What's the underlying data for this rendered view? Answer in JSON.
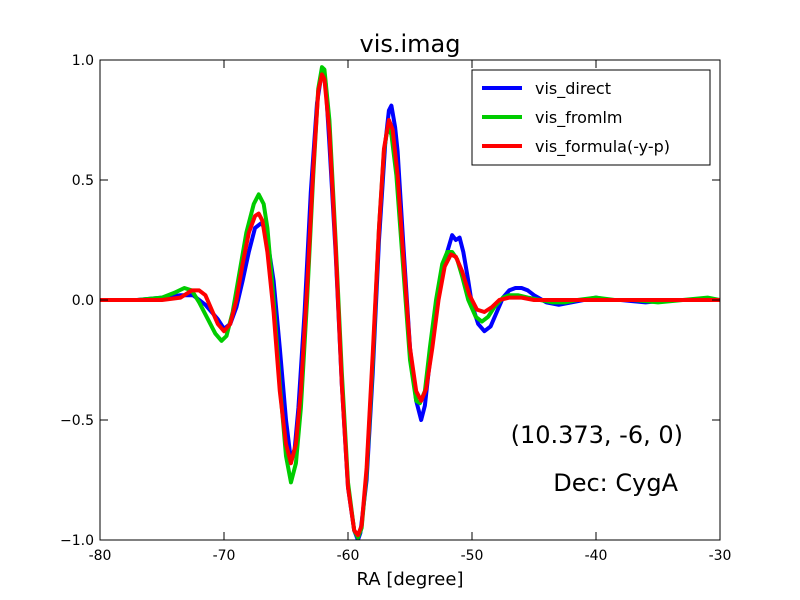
{
  "chart_data": {
    "type": "line",
    "title": "vis.imag",
    "xlabel": "RA [degree]",
    "ylabel": "",
    "xlim": [
      -80,
      -30
    ],
    "ylim": [
      -1.0,
      1.0
    ],
    "xticks": [
      -80,
      -70,
      -60,
      -50,
      -40,
      -30
    ],
    "xtick_labels": [
      "-80",
      "-70",
      "-60",
      "-50",
      "-40",
      "-30"
    ],
    "yticks": [
      -1.0,
      -0.5,
      0.0,
      0.5,
      1.0
    ],
    "ytick_labels": [
      "−1.0",
      "−0.5",
      "0.0",
      "0.5",
      "1.0"
    ],
    "grid": false,
    "legend_position": "top-right",
    "annotations": [
      "(10.373, -6, 0)",
      "Dec: CygA"
    ],
    "series": [
      {
        "name": "vis_direct",
        "color": "#0000ff",
        "points": [
          [
            -80,
            0
          ],
          [
            -77,
            0
          ],
          [
            -75,
            0.01
          ],
          [
            -73.5,
            0.02
          ],
          [
            -72.5,
            0.02
          ],
          [
            -71.5,
            -0.02
          ],
          [
            -70.5,
            -0.08
          ],
          [
            -70,
            -0.12
          ],
          [
            -69.5,
            -0.1
          ],
          [
            -69,
            -0.03
          ],
          [
            -68.5,
            0.08
          ],
          [
            -68,
            0.2
          ],
          [
            -67.5,
            0.3
          ],
          [
            -67,
            0.32
          ],
          [
            -66.7,
            0.3
          ],
          [
            -66.5,
            0.25
          ],
          [
            -66,
            0.08
          ],
          [
            -65.5,
            -0.2
          ],
          [
            -65,
            -0.5
          ],
          [
            -64.6,
            -0.67
          ],
          [
            -64.3,
            -0.62
          ],
          [
            -64,
            -0.45
          ],
          [
            -63.5,
            -0.05
          ],
          [
            -63,
            0.45
          ],
          [
            -62.5,
            0.82
          ],
          [
            -62.2,
            0.92
          ],
          [
            -62,
            0.95
          ],
          [
            -61.8,
            0.9
          ],
          [
            -61.5,
            0.65
          ],
          [
            -61,
            0.2
          ],
          [
            -60.5,
            -0.35
          ],
          [
            -60,
            -0.78
          ],
          [
            -59.5,
            -0.96
          ],
          [
            -59.2,
            -1.0
          ],
          [
            -59,
            -0.97
          ],
          [
            -58.5,
            -0.75
          ],
          [
            -58,
            -0.3
          ],
          [
            -57.5,
            0.25
          ],
          [
            -57,
            0.65
          ],
          [
            -56.7,
            0.79
          ],
          [
            -56.5,
            0.81
          ],
          [
            -56.2,
            0.72
          ],
          [
            -56,
            0.62
          ],
          [
            -55.5,
            0.2
          ],
          [
            -55,
            -0.2
          ],
          [
            -54.5,
            -0.42
          ],
          [
            -54.1,
            -0.5
          ],
          [
            -53.8,
            -0.44
          ],
          [
            -53.5,
            -0.3
          ],
          [
            -53,
            -0.1
          ],
          [
            -52.5,
            0.08
          ],
          [
            -52,
            0.2
          ],
          [
            -51.6,
            0.27
          ],
          [
            -51.3,
            0.25
          ],
          [
            -51,
            0.26
          ],
          [
            -50.7,
            0.2
          ],
          [
            -50.3,
            0.08
          ],
          [
            -50,
            -0.02
          ],
          [
            -49.5,
            -0.1
          ],
          [
            -49,
            -0.13
          ],
          [
            -48.5,
            -0.11
          ],
          [
            -48,
            -0.05
          ],
          [
            -47.5,
            0.01
          ],
          [
            -47,
            0.04
          ],
          [
            -46.5,
            0.05
          ],
          [
            -46,
            0.05
          ],
          [
            -45.5,
            0.04
          ],
          [
            -45,
            0.02
          ],
          [
            -44,
            -0.01
          ],
          [
            -43,
            -0.02
          ],
          [
            -42,
            -0.01
          ],
          [
            -41,
            0
          ],
          [
            -40,
            0.01
          ],
          [
            -39,
            0
          ],
          [
            -38,
            0
          ],
          [
            -36,
            -0.01
          ],
          [
            -34,
            0
          ],
          [
            -32,
            0
          ],
          [
            -30,
            0
          ]
        ]
      },
      {
        "name": "vis_fromlm",
        "color": "#00cc00",
        "points": [
          [
            -80,
            0
          ],
          [
            -77,
            0
          ],
          [
            -75,
            0.01
          ],
          [
            -74,
            0.03
          ],
          [
            -73.2,
            0.05
          ],
          [
            -72.6,
            0.04
          ],
          [
            -72,
            -0.01
          ],
          [
            -71.3,
            -0.08
          ],
          [
            -70.7,
            -0.14
          ],
          [
            -70.2,
            -0.17
          ],
          [
            -69.8,
            -0.15
          ],
          [
            -69.3,
            -0.05
          ],
          [
            -68.8,
            0.1
          ],
          [
            -68.2,
            0.28
          ],
          [
            -67.6,
            0.4
          ],
          [
            -67.2,
            0.44
          ],
          [
            -66.8,
            0.4
          ],
          [
            -66.5,
            0.3
          ],
          [
            -66,
            0.0
          ],
          [
            -65.5,
            -0.35
          ],
          [
            -65,
            -0.65
          ],
          [
            -64.6,
            -0.76
          ],
          [
            -64.2,
            -0.68
          ],
          [
            -63.8,
            -0.45
          ],
          [
            -63.3,
            0.0
          ],
          [
            -62.8,
            0.52
          ],
          [
            -62.4,
            0.88
          ],
          [
            -62.1,
            0.97
          ],
          [
            -61.9,
            0.96
          ],
          [
            -61.5,
            0.75
          ],
          [
            -61,
            0.25
          ],
          [
            -60.5,
            -0.3
          ],
          [
            -60,
            -0.76
          ],
          [
            -59.5,
            -0.96
          ],
          [
            -59.2,
            -0.99
          ],
          [
            -58.9,
            -0.95
          ],
          [
            -58.5,
            -0.72
          ],
          [
            -58,
            -0.25
          ],
          [
            -57.5,
            0.3
          ],
          [
            -57.1,
            0.62
          ],
          [
            -56.8,
            0.72
          ],
          [
            -56.5,
            0.69
          ],
          [
            -56.1,
            0.52
          ],
          [
            -55.5,
            0.1
          ],
          [
            -55,
            -0.25
          ],
          [
            -54.5,
            -0.42
          ],
          [
            -54.2,
            -0.43
          ],
          [
            -53.8,
            -0.38
          ],
          [
            -53.4,
            -0.2
          ],
          [
            -52.9,
            0.0
          ],
          [
            -52.4,
            0.15
          ],
          [
            -52,
            0.2
          ],
          [
            -51.6,
            0.2
          ],
          [
            -51.2,
            0.17
          ],
          [
            -50.8,
            0.1
          ],
          [
            -50.3,
            0.0
          ],
          [
            -49.7,
            -0.07
          ],
          [
            -49.2,
            -0.09
          ],
          [
            -48.7,
            -0.07
          ],
          [
            -48.2,
            -0.03
          ],
          [
            -47.5,
            0.01
          ],
          [
            -47,
            0.02
          ],
          [
            -46.3,
            0.02
          ],
          [
            -45.5,
            0.01
          ],
          [
            -44.5,
            0
          ],
          [
            -43.5,
            -0.01
          ],
          [
            -42.5,
            -0.01
          ],
          [
            -41.5,
            0
          ],
          [
            -40,
            0.01
          ],
          [
            -38.5,
            0
          ],
          [
            -37,
            0
          ],
          [
            -35,
            -0.01
          ],
          [
            -33,
            0
          ],
          [
            -31,
            0.01
          ],
          [
            -30,
            0
          ]
        ]
      },
      {
        "name": "vis_formula(-y-p)",
        "color": "#ff0000",
        "points": [
          [
            -80,
            0
          ],
          [
            -77,
            0
          ],
          [
            -75,
            0
          ],
          [
            -73.5,
            0.01
          ],
          [
            -72.6,
            0.04
          ],
          [
            -72,
            0.04
          ],
          [
            -71.5,
            0.02
          ],
          [
            -71,
            -0.04
          ],
          [
            -70.5,
            -0.1
          ],
          [
            -70,
            -0.13
          ],
          [
            -69.5,
            -0.1
          ],
          [
            -69,
            0.0
          ],
          [
            -68.5,
            0.15
          ],
          [
            -68,
            0.28
          ],
          [
            -67.5,
            0.35
          ],
          [
            -67.2,
            0.36
          ],
          [
            -66.9,
            0.33
          ],
          [
            -66.5,
            0.2
          ],
          [
            -66,
            -0.05
          ],
          [
            -65.5,
            -0.38
          ],
          [
            -65,
            -0.6
          ],
          [
            -64.6,
            -0.68
          ],
          [
            -64.2,
            -0.6
          ],
          [
            -63.8,
            -0.38
          ],
          [
            -63.3,
            0.05
          ],
          [
            -62.8,
            0.55
          ],
          [
            -62.4,
            0.87
          ],
          [
            -62.1,
            0.94
          ],
          [
            -61.9,
            0.92
          ],
          [
            -61.5,
            0.7
          ],
          [
            -61,
            0.22
          ],
          [
            -60.5,
            -0.35
          ],
          [
            -60,
            -0.78
          ],
          [
            -59.5,
            -0.96
          ],
          [
            -59.2,
            -0.98
          ],
          [
            -58.9,
            -0.94
          ],
          [
            -58.5,
            -0.7
          ],
          [
            -58,
            -0.22
          ],
          [
            -57.5,
            0.3
          ],
          [
            -57.1,
            0.63
          ],
          [
            -56.7,
            0.75
          ],
          [
            -56.4,
            0.71
          ],
          [
            -56,
            0.52
          ],
          [
            -55.5,
            0.15
          ],
          [
            -55,
            -0.2
          ],
          [
            -54.5,
            -0.38
          ],
          [
            -54.1,
            -0.42
          ],
          [
            -53.7,
            -0.37
          ],
          [
            -53.2,
            -0.2
          ],
          [
            -52.7,
            0.0
          ],
          [
            -52.2,
            0.14
          ],
          [
            -51.7,
            0.19
          ],
          [
            -51.3,
            0.18
          ],
          [
            -50.8,
            0.12
          ],
          [
            -50.2,
            0.02
          ],
          [
            -49.6,
            -0.04
          ],
          [
            -49,
            -0.05
          ],
          [
            -48.4,
            -0.03
          ],
          [
            -47.8,
            0.0
          ],
          [
            -47,
            0.01
          ],
          [
            -46,
            0.01
          ],
          [
            -45,
            0.0
          ],
          [
            -44,
            0
          ],
          [
            -42,
            0
          ],
          [
            -40,
            0
          ],
          [
            -38,
            0
          ],
          [
            -36,
            0
          ],
          [
            -34,
            0
          ],
          [
            -32,
            0
          ],
          [
            -30,
            0
          ]
        ]
      }
    ]
  }
}
